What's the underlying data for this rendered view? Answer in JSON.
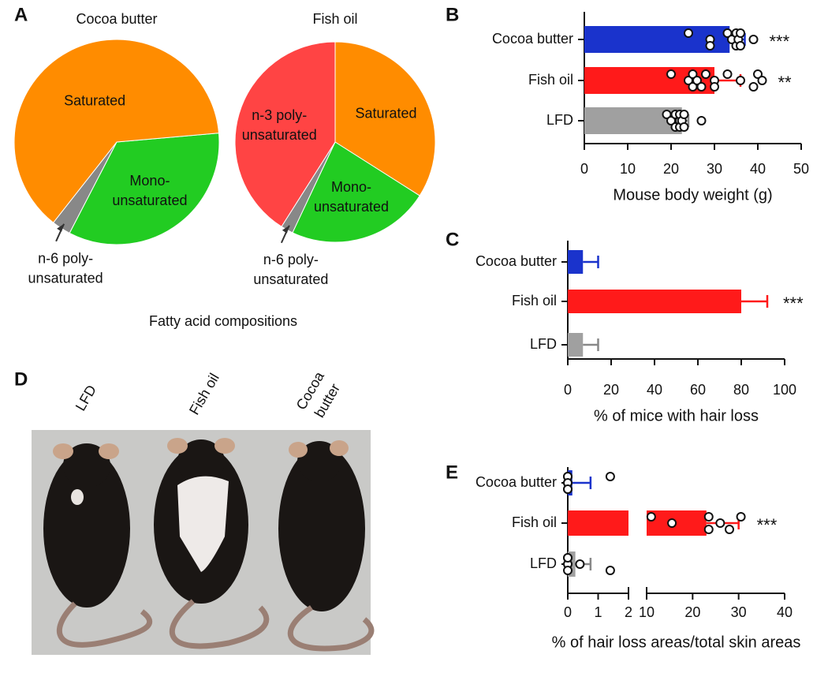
{
  "chart_data": [
    {
      "type": "pie",
      "panel": "A",
      "caption": "Fatty acid compositions",
      "pies": [
        {
          "title": "Cocoa butter",
          "categories": [
            "Mono-\nunsaturated",
            "n-6 poly-\nunsaturated",
            "Saturated"
          ],
          "values": [
            34,
            3,
            63
          ],
          "colors": [
            "#22cc22",
            "#888888",
            "#ff8c00"
          ]
        },
        {
          "title": "Fish oil",
          "categories": [
            "Saturated",
            "Mono-\nunsaturated",
            "n-6 poly-\nunsaturated",
            "n-3 poly-\nunsaturated"
          ],
          "values": [
            34,
            23,
            2,
            41
          ],
          "colors": [
            "#ff8c00",
            "#22cc22",
            "#888888",
            "#ff4444"
          ]
        }
      ]
    },
    {
      "type": "hbar",
      "panel": "B",
      "categories": [
        "Cocoa butter",
        "Fish oil",
        "LFD"
      ],
      "values": [
        33.5,
        30,
        22.5
      ],
      "errors": [
        3.5,
        6,
        1.5
      ],
      "colors": [
        "#1a33cc",
        "#ff1a1a",
        "#a0a0a0"
      ],
      "error_colors": [
        "#1a33cc",
        "#ff1a1a",
        "#888888"
      ],
      "points": [
        [
          24,
          29,
          29,
          33,
          34,
          35,
          35,
          35.5,
          36,
          36,
          39
        ],
        [
          20,
          24,
          25,
          25,
          26,
          27,
          28,
          30,
          30,
          33,
          36,
          39,
          40,
          41
        ],
        [
          19,
          20,
          21,
          21,
          22,
          22,
          22,
          22.5,
          23,
          23,
          27
        ]
      ],
      "stars": [
        "***",
        "**",
        null
      ],
      "xlabel": "Mouse body weight (g)",
      "xlim": [
        0,
        50
      ],
      "xticks": [
        0,
        10,
        20,
        30,
        40,
        50
      ]
    },
    {
      "type": "hbar",
      "panel": "C",
      "categories": [
        "Cocoa butter",
        "Fish oil",
        "LFD"
      ],
      "values": [
        7,
        80,
        7
      ],
      "errors": [
        7,
        12,
        7
      ],
      "colors": [
        "#1a33cc",
        "#ff1a1a",
        "#a0a0a0"
      ],
      "error_colors": [
        "#1a33cc",
        "#ff1a1a",
        "#888888"
      ],
      "stars": [
        null,
        "***",
        null
      ],
      "xlabel": "% of mice with hair loss",
      "xlim": [
        0,
        100
      ],
      "xticks": [
        0,
        20,
        40,
        60,
        80,
        100
      ]
    },
    {
      "type": "hbar",
      "panel": "E",
      "categories": [
        "Cocoa butter",
        "Fish oil",
        "LFD"
      ],
      "values": [
        0.15,
        23,
        0.25
      ],
      "errors": [
        0.6,
        7,
        0.5
      ],
      "colors": [
        "#1a33cc",
        "#ff1a1a",
        "#a0a0a0"
      ],
      "error_colors": [
        "#1a33cc",
        "#ff1a1a",
        "#888888"
      ],
      "points": [
        [
          0,
          0,
          0,
          0,
          0,
          0,
          1.4
        ],
        [
          11,
          15.5,
          23.5,
          23.5,
          26,
          28,
          30.5
        ],
        [
          0,
          0,
          0,
          0,
          0.4,
          1.4
        ]
      ],
      "stars": [
        null,
        "***",
        null
      ],
      "xlabel": "% of hair loss areas/total skin areas",
      "xlim": [
        0,
        40
      ],
      "xbreak": [
        2,
        10
      ],
      "xticks": [
        0,
        1,
        2,
        10,
        20,
        30,
        40
      ]
    },
    {
      "type": "image",
      "panel": "D",
      "labels": [
        "LFD",
        "Fish oil",
        "Cocoa\nbutter"
      ]
    }
  ]
}
